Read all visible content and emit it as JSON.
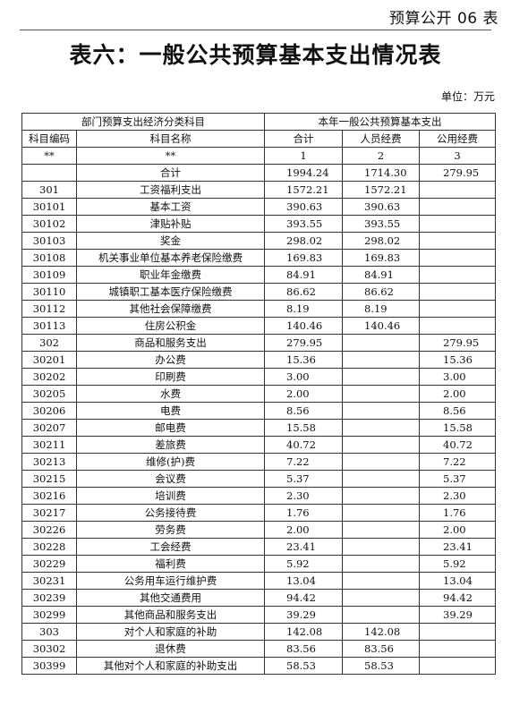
{
  "header": {
    "doc_code": "预算公开 06 表",
    "title": "表六：一般公共预算基本支出情况表",
    "unit": "单位：万元"
  },
  "table": {
    "group_left": "部门预算支出经济分类科目",
    "group_right": "本年一般公共预算基本支出",
    "columns": [
      "科目编码",
      "科目名称",
      "合计",
      "人员经费",
      "公用经费"
    ],
    "index_row": [
      "**",
      "**",
      "1",
      "2",
      "3"
    ],
    "rows": [
      {
        "code": "",
        "name": "合计",
        "total": "1994.24",
        "personnel": "1714.30",
        "public": "279.95"
      },
      {
        "code": "301",
        "name": "工资福利支出",
        "total": "1572.21",
        "personnel": "1572.21",
        "public": ""
      },
      {
        "code": "30101",
        "name": "基本工资",
        "total": "390.63",
        "personnel": "390.63",
        "public": ""
      },
      {
        "code": "30102",
        "name": "津贴补贴",
        "total": "393.55",
        "personnel": "393.55",
        "public": ""
      },
      {
        "code": "30103",
        "name": "奖金",
        "total": "298.02",
        "personnel": "298.02",
        "public": ""
      },
      {
        "code": "30108",
        "name": "机关事业单位基本养老保险缴费",
        "total": "169.83",
        "personnel": "169.83",
        "public": ""
      },
      {
        "code": "30109",
        "name": "职业年金缴费",
        "total": "84.91",
        "personnel": "84.91",
        "public": ""
      },
      {
        "code": "30110",
        "name": "城镇职工基本医疗保险缴费",
        "total": "86.62",
        "personnel": "86.62",
        "public": ""
      },
      {
        "code": "30112",
        "name": "其他社会保障缴费",
        "total": "8.19",
        "personnel": "8.19",
        "public": ""
      },
      {
        "code": "30113",
        "name": "住房公积金",
        "total": "140.46",
        "personnel": "140.46",
        "public": ""
      },
      {
        "code": "302",
        "name": "商品和服务支出",
        "total": "279.95",
        "personnel": "",
        "public": "279.95"
      },
      {
        "code": "30201",
        "name": "办公费",
        "total": "15.36",
        "personnel": "",
        "public": "15.36"
      },
      {
        "code": "30202",
        "name": "印刷费",
        "total": "3.00",
        "personnel": "",
        "public": "3.00"
      },
      {
        "code": "30205",
        "name": "水费",
        "total": "2.00",
        "personnel": "",
        "public": "2.00"
      },
      {
        "code": "30206",
        "name": "电费",
        "total": "8.56",
        "personnel": "",
        "public": "8.56"
      },
      {
        "code": "30207",
        "name": "邮电费",
        "total": "15.58",
        "personnel": "",
        "public": "15.58"
      },
      {
        "code": "30211",
        "name": "差旅费",
        "total": "40.72",
        "personnel": "",
        "public": "40.72"
      },
      {
        "code": "30213",
        "name": "维修(护)费",
        "total": "7.22",
        "personnel": "",
        "public": "7.22"
      },
      {
        "code": "30215",
        "name": "会议费",
        "total": "5.37",
        "personnel": "",
        "public": "5.37"
      },
      {
        "code": "30216",
        "name": "培训费",
        "total": "2.30",
        "personnel": "",
        "public": "2.30"
      },
      {
        "code": "30217",
        "name": "公务接待费",
        "total": "1.76",
        "personnel": "",
        "public": "1.76"
      },
      {
        "code": "30226",
        "name": "劳务费",
        "total": "2.00",
        "personnel": "",
        "public": "2.00"
      },
      {
        "code": "30228",
        "name": "工会经费",
        "total": "23.41",
        "personnel": "",
        "public": "23.41"
      },
      {
        "code": "30229",
        "name": "福利费",
        "total": "5.92",
        "personnel": "",
        "public": "5.92"
      },
      {
        "code": "30231",
        "name": "公务用车运行维护费",
        "total": "13.04",
        "personnel": "",
        "public": "13.04"
      },
      {
        "code": "30239",
        "name": "其他交通费用",
        "total": "94.42",
        "personnel": "",
        "public": "94.42"
      },
      {
        "code": "30299",
        "name": "其他商品和服务支出",
        "total": "39.29",
        "personnel": "",
        "public": "39.29"
      },
      {
        "code": "303",
        "name": "对个人和家庭的补助",
        "total": "142.08",
        "personnel": "142.08",
        "public": ""
      },
      {
        "code": "30302",
        "name": "退休费",
        "total": "83.56",
        "personnel": "83.56",
        "public": ""
      },
      {
        "code": "30399",
        "name": "其他对个人和家庭的补助支出",
        "total": "58.53",
        "personnel": "58.53",
        "public": ""
      }
    ]
  }
}
